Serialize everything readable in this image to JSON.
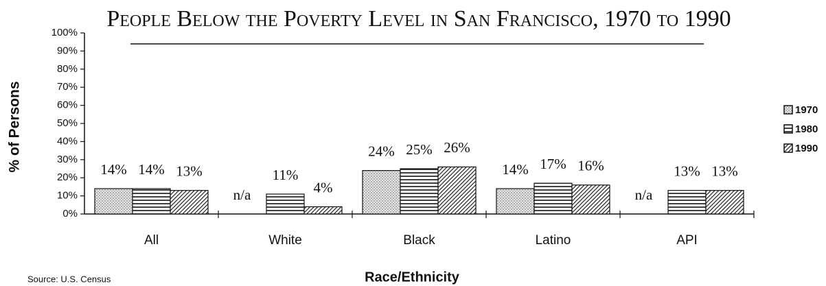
{
  "chart_data": {
    "type": "bar",
    "title": "People Below the Poverty Level in San Francisco, 1970 to 1990",
    "y_label": "% of Persons",
    "x_label": "Race/Ethnicity",
    "source": "Source: U.S. Census",
    "categories": [
      "All",
      "White",
      "Black",
      "Latino",
      "API"
    ],
    "series": [
      {
        "name": "1970",
        "pattern": "dots",
        "values": [
          14,
          null,
          24,
          14,
          null
        ],
        "value_labels": [
          "14%",
          "n/a",
          "24%",
          "14%",
          "n/a"
        ]
      },
      {
        "name": "1980",
        "pattern": "horizontal",
        "values": [
          14,
          11,
          25,
          17,
          13
        ],
        "value_labels": [
          "14%",
          "11%",
          "25%",
          "17%",
          "13%"
        ]
      },
      {
        "name": "1990",
        "pattern": "diagonal",
        "values": [
          13,
          4,
          26,
          16,
          13
        ],
        "value_labels": [
          "13%",
          "4%",
          "26%",
          "16%",
          "13%"
        ]
      }
    ],
    "ylim": [
      0,
      100
    ],
    "yticks": [
      {
        "value": 0,
        "label": "0%"
      },
      {
        "value": 10,
        "label": "10%"
      },
      {
        "value": 20,
        "label": "20%"
      },
      {
        "value": 30,
        "label": "30%"
      },
      {
        "value": 40,
        "label": "40%"
      },
      {
        "value": 50,
        "label": "50%"
      },
      {
        "value": 60,
        "label": "60%"
      },
      {
        "value": 70,
        "label": "70%"
      },
      {
        "value": 80,
        "label": "80%"
      },
      {
        "value": 90,
        "label": "90%"
      },
      {
        "value": 100,
        "label": "100%"
      }
    ],
    "legend": "right"
  }
}
